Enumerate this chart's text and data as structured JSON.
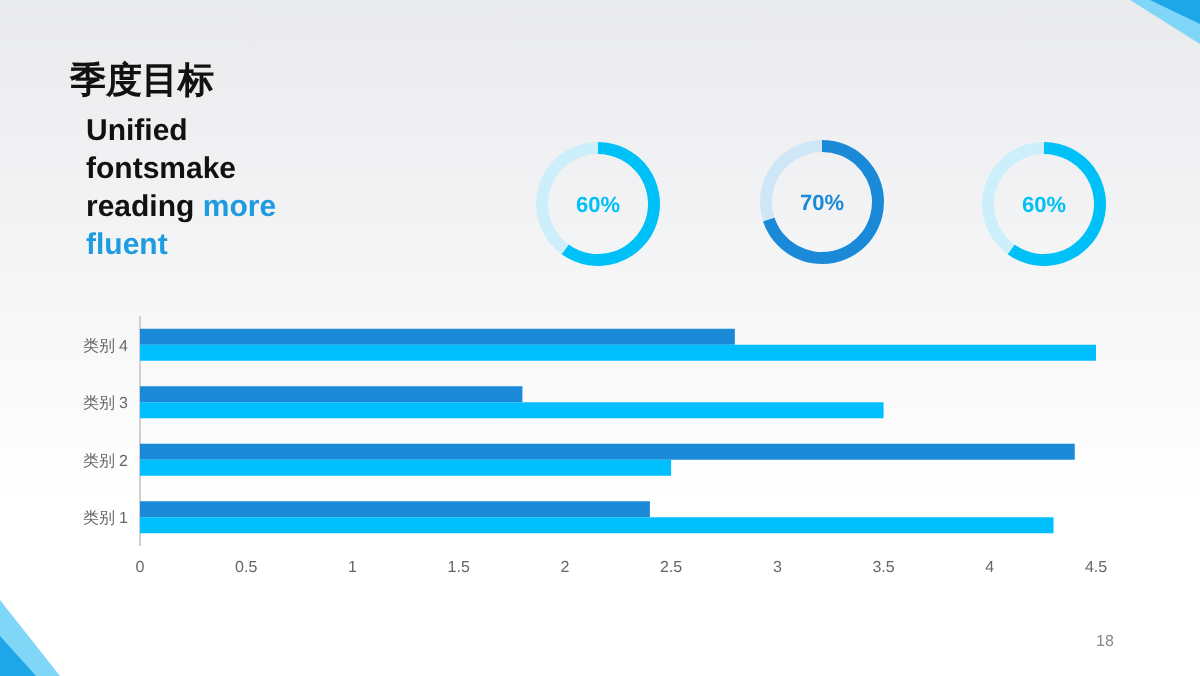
{
  "chart_data": [
    {
      "type": "other",
      "title": "季度目标",
      "annotations": [
        "Unified fontsmake reading",
        "more fluent",
        "18"
      ]
    },
    {
      "type": "donut",
      "categories": [
        null,
        null
      ],
      "values": [
        60,
        40
      ],
      "colors": [
        "#00c0f8",
        "#cdeefb"
      ],
      "value_labels": [
        "60%",
        null
      ]
    },
    {
      "type": "donut",
      "categories": [
        null,
        null
      ],
      "values": [
        70,
        30
      ],
      "colors": [
        "#1a8ad8",
        "#cfe6f7"
      ],
      "value_labels": [
        "70%",
        null
      ]
    },
    {
      "type": "donut",
      "categories": [
        null,
        null
      ],
      "values": [
        60,
        40
      ],
      "colors": [
        "#00c0f8",
        "#cdeefb"
      ],
      "value_labels": [
        "60%",
        null
      ]
    },
    {
      "type": "bar",
      "orientation": "horizontal",
      "categories": [
        "类别 4",
        "类别 3",
        "类别 2",
        "类别 1"
      ],
      "series": [
        {
          "color": "#1a8ad8",
          "values": [
            2.8,
            1.8,
            4.4,
            2.4
          ]
        },
        {
          "color": "#00bfff",
          "values": [
            4.5,
            3.5,
            2.5,
            4.3
          ]
        }
      ],
      "xlim": [
        0,
        4.5
      ],
      "xticks": [
        0,
        0.5,
        1,
        1.5,
        2,
        2.5,
        3,
        3.5,
        4,
        4.5
      ],
      "grid": false
    }
  ]
}
